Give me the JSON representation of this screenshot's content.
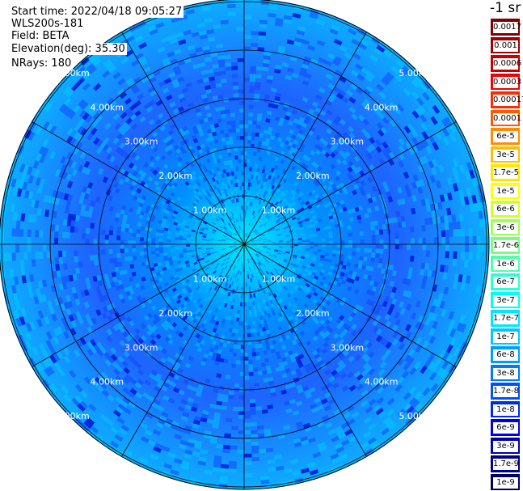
{
  "header": {
    "start_time": "Start time: 2022/04/18 09:05:27",
    "instrument": "WLS200s-181",
    "field": "Field: BETA",
    "elevation": "Elevation(deg): 35.30",
    "nrays": "NRays: 180"
  },
  "colorbar": {
    "unit_label": "-1 sr",
    "entries": [
      {
        "label": "0.0017",
        "color": "#800000"
      },
      {
        "label": "0.001",
        "color": "#a00000"
      },
      {
        "label": "0.0006",
        "color": "#c80000"
      },
      {
        "label": "0.0003",
        "color": "#f00000"
      },
      {
        "label": "0.00017",
        "color": "#ff2a00"
      },
      {
        "label": "0.0001",
        "color": "#ff5a00"
      },
      {
        "label": "6e-5",
        "color": "#ff8c00"
      },
      {
        "label": "3e-5",
        "color": "#ffbe00"
      },
      {
        "label": "1.7e-5",
        "color": "#ffe600"
      },
      {
        "label": "1e-5",
        "color": "#ffff00"
      },
      {
        "label": "6e-6",
        "color": "#d2ff28"
      },
      {
        "label": "3e-6",
        "color": "#a0ff5a"
      },
      {
        "label": "1.7e-6",
        "color": "#78ff82"
      },
      {
        "label": "1e-6",
        "color": "#50ffaa"
      },
      {
        "label": "6e-7",
        "color": "#28ffd2"
      },
      {
        "label": "3e-7",
        "color": "#00fff0"
      },
      {
        "label": "1.7e-7",
        "color": "#00e6ff"
      },
      {
        "label": "1e-7",
        "color": "#00c8ff"
      },
      {
        "label": "6e-8",
        "color": "#00a0ff"
      },
      {
        "label": "3e-8",
        "color": "#0078ff"
      },
      {
        "label": "1.7e-8",
        "color": "#0050ff"
      },
      {
        "label": "1e-8",
        "color": "#0028f0"
      },
      {
        "label": "6e-9",
        "color": "#0000e6"
      },
      {
        "label": "3e-9",
        "color": "#0000b4"
      },
      {
        "label": "1.7e-9",
        "color": "#000090"
      },
      {
        "label": "1e-9",
        "color": "#000060"
      }
    ]
  },
  "range_rings": [
    {
      "label": "1.00km",
      "km": 1
    },
    {
      "label": "2.00km",
      "km": 2
    },
    {
      "label": "3.00km",
      "km": 3
    },
    {
      "label": "4.00km",
      "km": 4
    },
    {
      "label": "5.00km",
      "km": 5
    }
  ],
  "max_range_km": 5.05,
  "colors": {
    "center": "#3cffc0",
    "inner": "#00e6ff",
    "mid": "#0090ff",
    "outer": "#1e64ff",
    "speck": "#0028e0",
    "rings": "#000000",
    "ring_labels": "#ffffff"
  }
}
